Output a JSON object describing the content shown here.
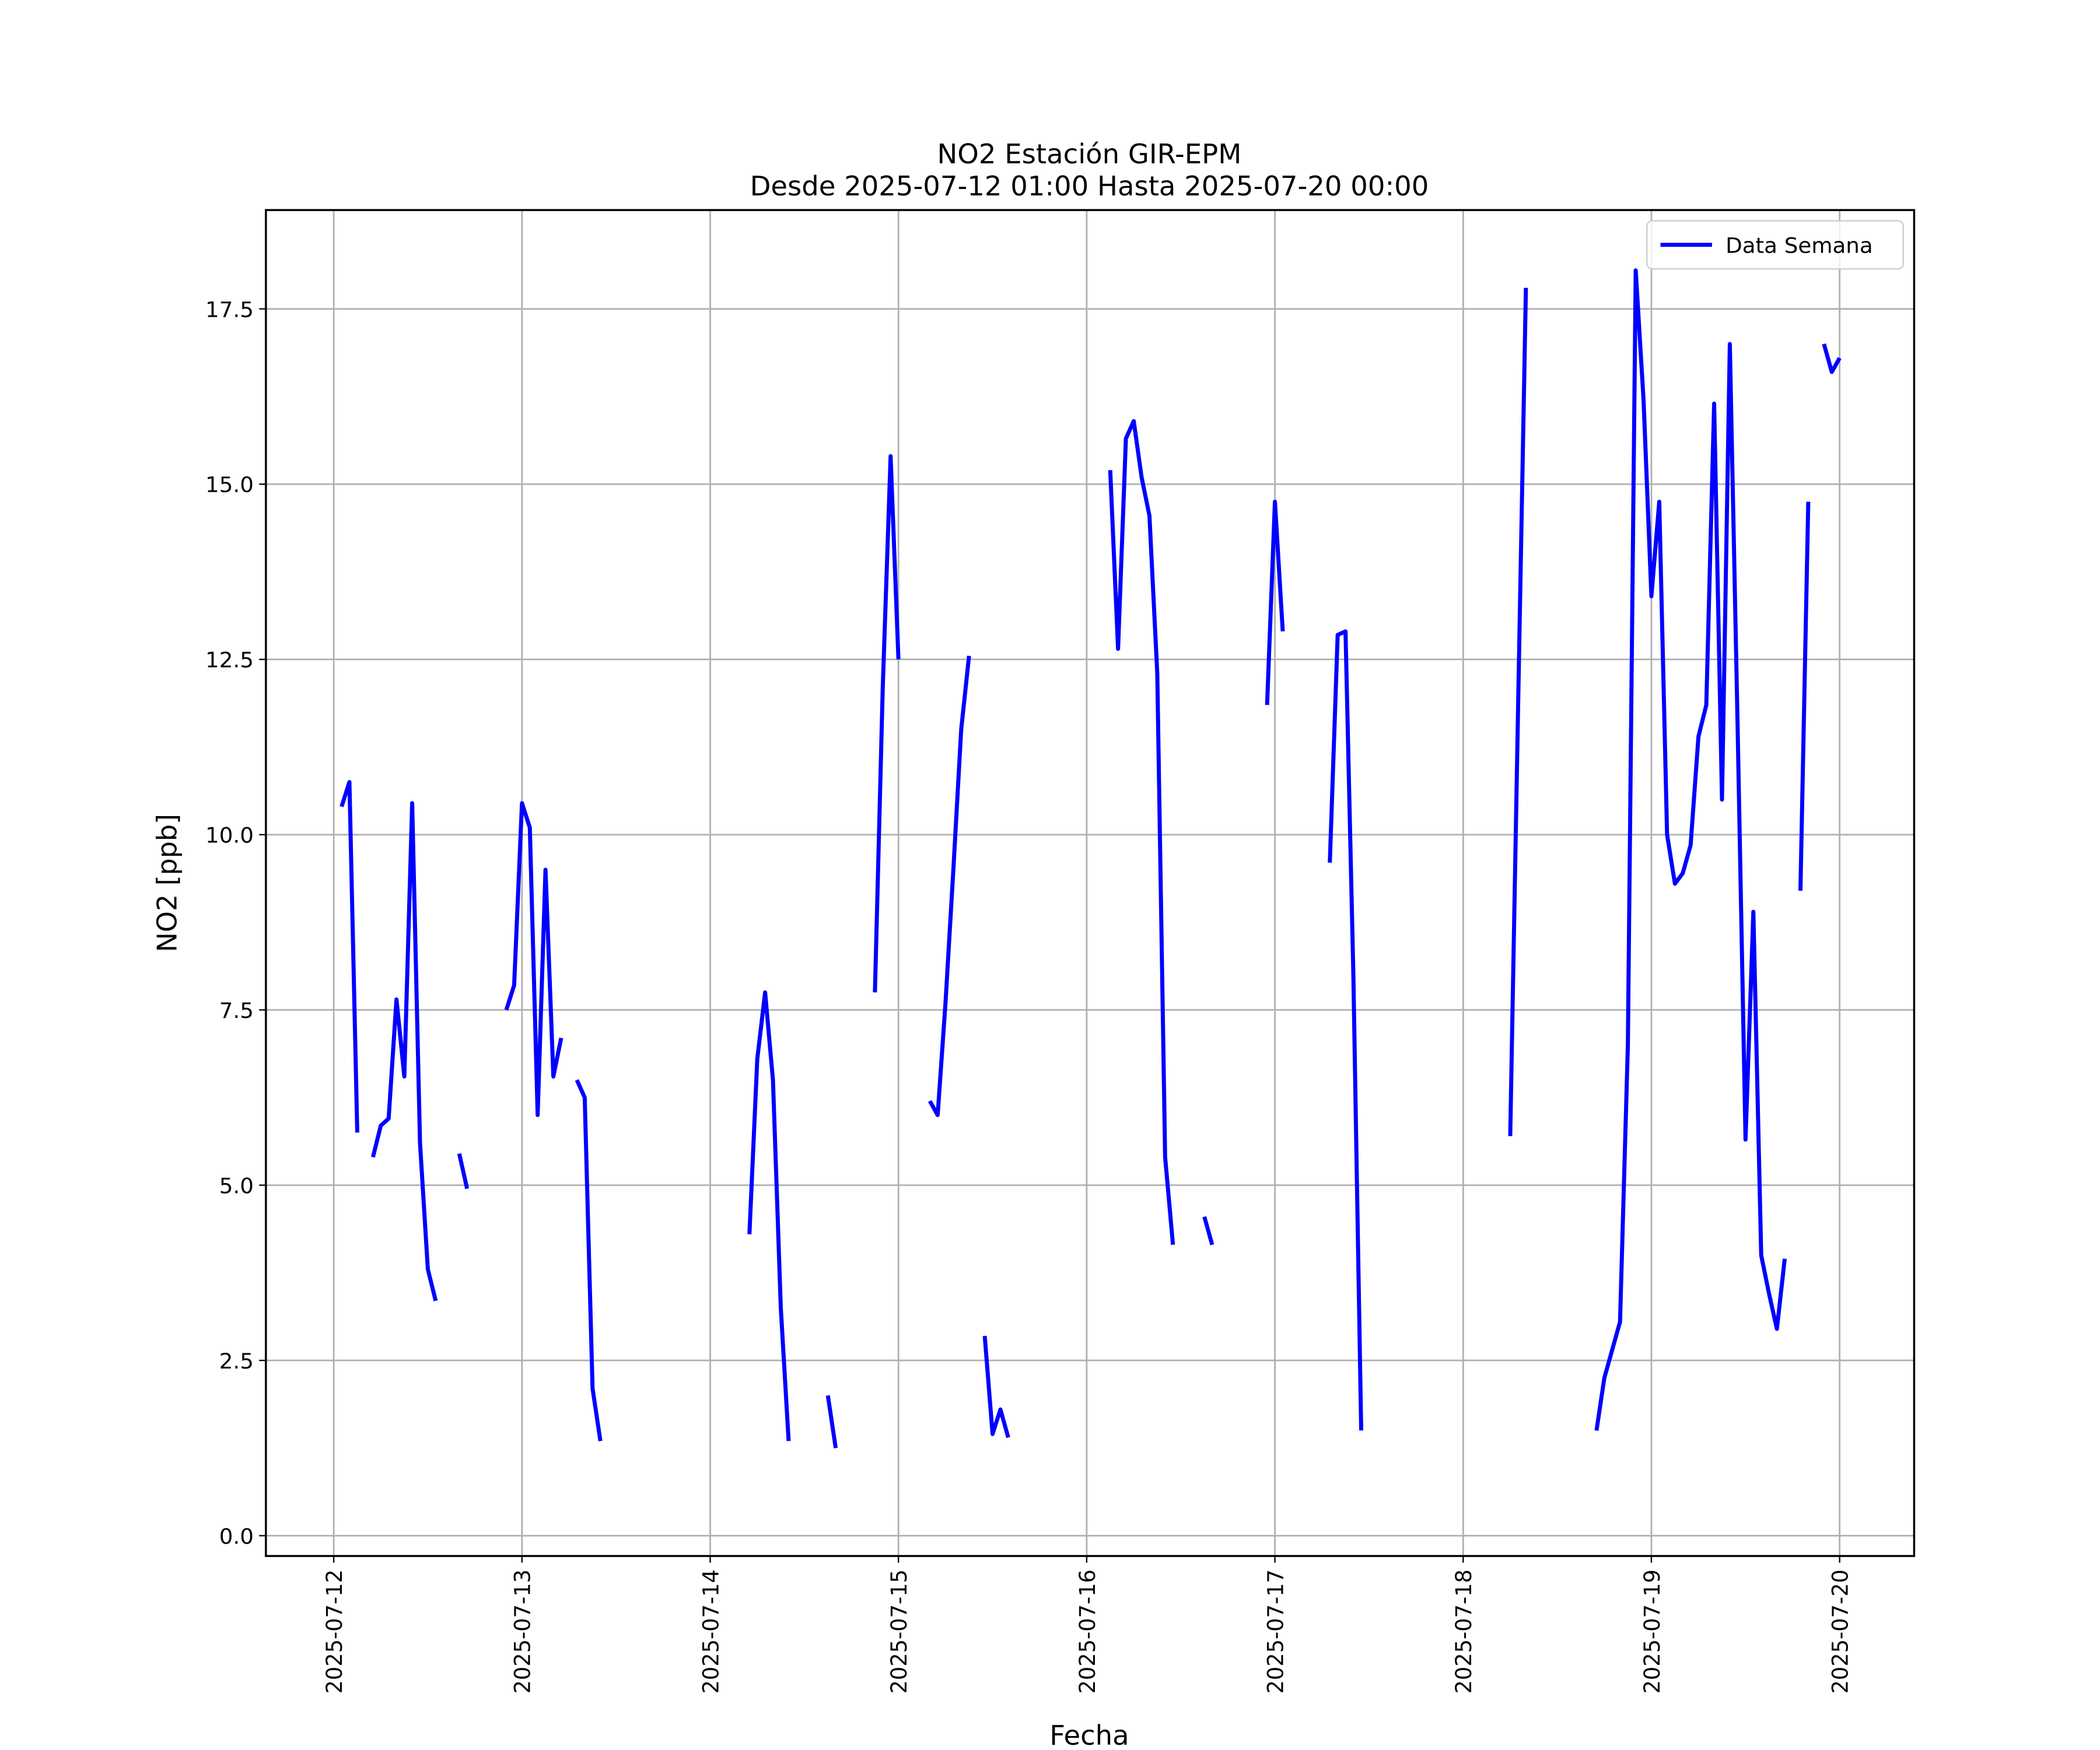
{
  "chart_data": {
    "type": "line",
    "title": "NO2 Estación GIR-EPM",
    "subtitle": "Desde 2025-07-12 01:00 Hasta 2025-07-20 00:00",
    "x_label": "Fecha",
    "y_label": "NO2 [ppb]",
    "x": [
      "2025-07-12 01:00",
      "2025-07-12 02:00",
      "2025-07-12 03:00",
      "2025-07-12 04:00",
      "2025-07-12 05:00",
      "2025-07-12 06:00",
      "2025-07-12 07:00",
      "2025-07-12 08:00",
      "2025-07-12 09:00",
      "2025-07-12 10:00",
      "2025-07-12 11:00",
      "2025-07-12 12:00",
      "2025-07-12 13:00",
      "2025-07-12 14:00",
      "2025-07-12 16:00",
      "2025-07-12 17:00",
      "2025-07-12 18:00",
      "2025-07-12 22:00",
      "2025-07-12 23:00",
      "2025-07-13 00:00",
      "2025-07-13 01:00",
      "2025-07-13 02:00",
      "2025-07-13 03:00",
      "2025-07-13 04:00",
      "2025-07-13 05:00",
      "2025-07-13 06:00",
      "2025-07-13 07:00",
      "2025-07-13 08:00",
      "2025-07-13 09:00",
      "2025-07-13 10:00",
      "2025-07-13 11:00",
      "2025-07-14 05:00",
      "2025-07-14 06:00",
      "2025-07-14 07:00",
      "2025-07-14 08:00",
      "2025-07-14 09:00",
      "2025-07-14 10:00",
      "2025-07-14 11:00",
      "2025-07-14 15:00",
      "2025-07-14 16:00",
      "2025-07-14 17:00",
      "2025-07-14 21:00",
      "2025-07-14 22:00",
      "2025-07-14 23:00",
      "2025-07-15 00:00",
      "2025-07-15 01:00",
      "2025-07-15 04:00",
      "2025-07-15 05:00",
      "2025-07-15 06:00",
      "2025-07-15 07:00",
      "2025-07-15 08:00",
      "2025-07-15 09:00",
      "2025-07-15 10:00",
      "2025-07-15 11:00",
      "2025-07-15 12:00",
      "2025-07-15 13:00",
      "2025-07-15 14:00",
      "2025-07-15 15:00",
      "2025-07-16 03:00",
      "2025-07-16 04:00",
      "2025-07-16 05:00",
      "2025-07-16 06:00",
      "2025-07-16 07:00",
      "2025-07-16 08:00",
      "2025-07-16 09:00",
      "2025-07-16 10:00",
      "2025-07-16 11:00",
      "2025-07-16 12:00",
      "2025-07-16 15:00",
      "2025-07-16 16:00",
      "2025-07-16 17:00",
      "2025-07-16 23:00",
      "2025-07-17 00:00",
      "2025-07-17 01:00",
      "2025-07-17 02:00",
      "2025-07-17 07:00",
      "2025-07-17 08:00",
      "2025-07-17 09:00",
      "2025-07-17 10:00",
      "2025-07-17 11:00",
      "2025-07-17 12:00",
      "2025-07-18 06:00",
      "2025-07-18 07:00",
      "2025-07-18 08:00",
      "2025-07-18 09:00",
      "2025-07-18 17:00",
      "2025-07-18 18:00",
      "2025-07-18 19:00",
      "2025-07-18 20:00",
      "2025-07-18 21:00",
      "2025-07-18 22:00",
      "2025-07-18 23:00",
      "2025-07-19 00:00",
      "2025-07-19 01:00",
      "2025-07-19 02:00",
      "2025-07-19 03:00",
      "2025-07-19 04:00",
      "2025-07-19 05:00",
      "2025-07-19 06:00",
      "2025-07-19 07:00",
      "2025-07-19 08:00",
      "2025-07-19 09:00",
      "2025-07-19 10:00",
      "2025-07-19 11:00",
      "2025-07-19 12:00",
      "2025-07-19 13:00",
      "2025-07-19 14:00",
      "2025-07-19 15:00",
      "2025-07-19 16:00",
      "2025-07-19 17:00",
      "2025-07-19 18:00",
      "2025-07-19 19:00",
      "2025-07-19 20:00",
      "2025-07-19 21:00",
      "2025-07-19 22:00",
      "2025-07-19 23:00",
      "2025-07-20 00:00"
    ],
    "series": [
      {
        "name": "Data Semana",
        "color": "#0000ff",
        "values": [
          10.4,
          10.75,
          5.75,
          null,
          5.4,
          5.85,
          5.95,
          7.65,
          6.55,
          10.45,
          5.6,
          3.8,
          3.35,
          null,
          5.45,
          4.95,
          null,
          7.5,
          7.85,
          10.45,
          10.1,
          6.0,
          9.5,
          6.55,
          7.1,
          null,
          6.5,
          6.25,
          2.1,
          1.35,
          null,
          4.3,
          6.8,
          7.75,
          6.5,
          3.25,
          1.35,
          null,
          2.0,
          1.25,
          null,
          7.75,
          12.1,
          15.4,
          12.5,
          null,
          6.2,
          6.0,
          7.6,
          9.5,
          11.5,
          12.55,
          null,
          2.85,
          1.45,
          1.8,
          1.4,
          null,
          15.2,
          12.65,
          15.65,
          15.9,
          15.1,
          14.55,
          12.3,
          5.4,
          4.15,
          null,
          4.55,
          4.15,
          null,
          11.85,
          14.75,
          12.9,
          null,
          9.6,
          12.85,
          12.9,
          8.0,
          1.5,
          null,
          5.7,
          11.8,
          17.8,
          null,
          1.5,
          2.25,
          2.65,
          3.05,
          7.0,
          18.05,
          16.2,
          13.4,
          14.75,
          10.0,
          9.3,
          9.45,
          9.85,
          11.4,
          11.85,
          16.15,
          10.5,
          17.0,
          11.5,
          5.65,
          8.9,
          4.0,
          3.45,
          2.95,
          3.95,
          null,
          9.2,
          14.75,
          null,
          17.0,
          16.6,
          16.8
        ]
      }
    ],
    "xlim": [
      "2025-07-11 15:21",
      "2025-07-20 09:30"
    ],
    "xticks": [
      "2025-07-12",
      "2025-07-13",
      "2025-07-14",
      "2025-07-15",
      "2025-07-16",
      "2025-07-17",
      "2025-07-18",
      "2025-07-19",
      "2025-07-20"
    ],
    "ylim": [
      -0.29,
      18.91
    ],
    "yticks": [
      {
        "value": 0,
        "label": "0.0"
      },
      2.5,
      {
        "value": 5,
        "label": "5.0"
      },
      7.5,
      {
        "value": 10,
        "label": "10.0"
      },
      12.5,
      {
        "value": 15,
        "label": "15.0"
      },
      17.5
    ],
    "grid": true,
    "legend": "upper right"
  }
}
